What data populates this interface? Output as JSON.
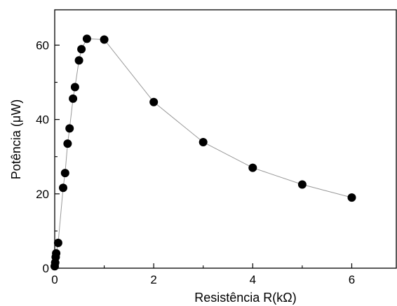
{
  "chart_data": {
    "type": "scatter",
    "title": "",
    "xlabel": "Resistência R(kΩ)",
    "ylabel": "Potência (μW)",
    "xlim": [
      0,
      6.9
    ],
    "ylim": [
      0,
      69.5
    ],
    "xticks": [
      0,
      2,
      4,
      6
    ],
    "yticks": [
      0,
      20,
      40,
      60
    ],
    "x_tick_labels": [
      "0",
      "2",
      "4",
      "6"
    ],
    "y_tick_labels": [
      "0",
      "20",
      "40",
      "60"
    ],
    "grid": false,
    "legend": "none",
    "connected_line": true,
    "marker_color": "#000000",
    "line_color": "#999999",
    "series": [
      {
        "points": [
          {
            "x": 0.0,
            "y": 0.5
          },
          {
            "x": 0.01,
            "y": 1.5
          },
          {
            "x": 0.02,
            "y": 3.0
          },
          {
            "x": 0.03,
            "y": 4.0
          },
          {
            "x": 0.07,
            "y": 6.8
          },
          {
            "x": 0.17,
            "y": 21.6
          },
          {
            "x": 0.21,
            "y": 25.6
          },
          {
            "x": 0.26,
            "y": 33.5
          },
          {
            "x": 0.3,
            "y": 37.6
          },
          {
            "x": 0.37,
            "y": 45.6
          },
          {
            "x": 0.41,
            "y": 48.7
          },
          {
            "x": 0.49,
            "y": 55.9
          },
          {
            "x": 0.54,
            "y": 58.9
          },
          {
            "x": 0.65,
            "y": 61.7
          },
          {
            "x": 1.0,
            "y": 61.5
          },
          {
            "x": 2.0,
            "y": 44.7
          },
          {
            "x": 3.0,
            "y": 33.9
          },
          {
            "x": 4.0,
            "y": 27.0
          },
          {
            "x": 5.0,
            "y": 22.5
          },
          {
            "x": 6.0,
            "y": 19.0
          }
        ]
      }
    ]
  }
}
